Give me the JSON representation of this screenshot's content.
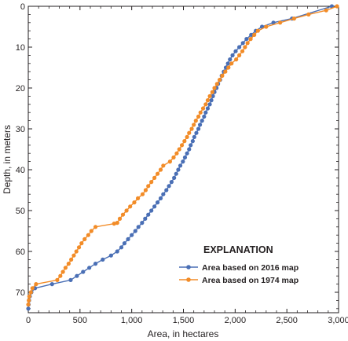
{
  "chart_data": {
    "type": "line",
    "xlabel": "Area, in hectares",
    "ylabel": "Depth, in meters",
    "xlim": [
      0,
      3000
    ],
    "ylim": [
      0,
      75
    ],
    "y_inverted": true,
    "x_axis_position": "top-and-bottom",
    "x_ticks": [
      0,
      500,
      1000,
      1500,
      2000,
      2500,
      3000
    ],
    "x_tick_labels": [
      "0",
      "500",
      "1,000",
      "1,500",
      "2,000",
      "2,500",
      "3,000"
    ],
    "y_ticks": [
      0,
      10,
      20,
      30,
      40,
      50,
      60,
      70
    ],
    "y_tick_labels": [
      "0",
      "10",
      "20",
      "30",
      "40",
      "50",
      "60",
      "70"
    ],
    "grid": false,
    "legend": {
      "title": "EXPLANATION",
      "placement": "lower-right"
    },
    "series": [
      {
        "name": "Area based on 2016 map",
        "color": "#4a6fb5",
        "marker": "circle",
        "points": [
          [
            2935,
            0
          ],
          [
            2550,
            3
          ],
          [
            2370,
            4
          ],
          [
            2260,
            5
          ],
          [
            2200,
            6
          ],
          [
            2155,
            7
          ],
          [
            2110,
            8
          ],
          [
            2075,
            9
          ],
          [
            2040,
            10
          ],
          [
            2005,
            11
          ],
          [
            1975,
            12
          ],
          [
            1950,
            13
          ],
          [
            1930,
            14
          ],
          [
            1910,
            15
          ],
          [
            1890,
            16
          ],
          [
            1870,
            17
          ],
          [
            1855,
            18
          ],
          [
            1835,
            19
          ],
          [
            1820,
            20
          ],
          [
            1800,
            21
          ],
          [
            1785,
            22
          ],
          [
            1770,
            23
          ],
          [
            1755,
            24
          ],
          [
            1735,
            25
          ],
          [
            1715,
            26
          ],
          [
            1700,
            27
          ],
          [
            1680,
            28
          ],
          [
            1660,
            29
          ],
          [
            1645,
            30
          ],
          [
            1625,
            31
          ],
          [
            1605,
            32
          ],
          [
            1590,
            33
          ],
          [
            1570,
            34
          ],
          [
            1555,
            35
          ],
          [
            1535,
            36
          ],
          [
            1515,
            37
          ],
          [
            1495,
            38
          ],
          [
            1470,
            39
          ],
          [
            1450,
            40
          ],
          [
            1430,
            41
          ],
          [
            1410,
            42
          ],
          [
            1385,
            43
          ],
          [
            1360,
            44
          ],
          [
            1335,
            45
          ],
          [
            1305,
            46
          ],
          [
            1280,
            47
          ],
          [
            1250,
            48
          ],
          [
            1220,
            49
          ],
          [
            1190,
            50
          ],
          [
            1160,
            51
          ],
          [
            1130,
            52
          ],
          [
            1100,
            53
          ],
          [
            1065,
            54
          ],
          [
            1035,
            55
          ],
          [
            1000,
            56
          ],
          [
            965,
            57
          ],
          [
            930,
            58
          ],
          [
            900,
            59
          ],
          [
            860,
            60
          ],
          [
            800,
            61
          ],
          [
            720,
            62
          ],
          [
            650,
            63
          ],
          [
            590,
            64
          ],
          [
            530,
            65
          ],
          [
            470,
            66
          ],
          [
            410,
            67
          ],
          [
            230,
            68
          ],
          [
            65,
            69
          ],
          [
            30,
            70
          ],
          [
            15,
            71
          ],
          [
            8,
            72
          ],
          [
            3,
            73
          ],
          [
            0,
            74
          ]
        ]
      },
      {
        "name": "Area based on 1974 map",
        "color": "#f28c28",
        "marker": "circle",
        "points": [
          [
            2985,
            0
          ],
          [
            2880,
            1
          ],
          [
            2710,
            2
          ],
          [
            2570,
            3
          ],
          [
            2435,
            4
          ],
          [
            2300,
            5
          ],
          [
            2220,
            6
          ],
          [
            2185,
            7
          ],
          [
            2150,
            8
          ],
          [
            2120,
            9
          ],
          [
            2095,
            10
          ],
          [
            2070,
            11
          ],
          [
            2040,
            12
          ],
          [
            2010,
            13
          ],
          [
            1965,
            14
          ],
          [
            1935,
            15
          ],
          [
            1905,
            16
          ],
          [
            1875,
            17
          ],
          [
            1850,
            18
          ],
          [
            1825,
            19
          ],
          [
            1800,
            20
          ],
          [
            1780,
            21
          ],
          [
            1755,
            22
          ],
          [
            1735,
            23
          ],
          [
            1715,
            24
          ],
          [
            1690,
            25
          ],
          [
            1665,
            26
          ],
          [
            1645,
            27
          ],
          [
            1620,
            28
          ],
          [
            1600,
            29
          ],
          [
            1580,
            30
          ],
          [
            1555,
            31
          ],
          [
            1535,
            32
          ],
          [
            1510,
            33
          ],
          [
            1485,
            34
          ],
          [
            1460,
            35
          ],
          [
            1435,
            36
          ],
          [
            1405,
            37
          ],
          [
            1370,
            38
          ],
          [
            1305,
            39
          ],
          [
            1280,
            40
          ],
          [
            1250,
            41
          ],
          [
            1220,
            42
          ],
          [
            1190,
            43
          ],
          [
            1160,
            44
          ],
          [
            1135,
            45
          ],
          [
            1105,
            46
          ],
          [
            1060,
            47
          ],
          [
            1025,
            48
          ],
          [
            985,
            49
          ],
          [
            950,
            50
          ],
          [
            915,
            51
          ],
          [
            885,
            52
          ],
          [
            860,
            53
          ],
          [
            830,
            53.2
          ],
          [
            650,
            54
          ],
          [
            610,
            55
          ],
          [
            580,
            56
          ],
          [
            545,
            57
          ],
          [
            515,
            58
          ],
          [
            490,
            59
          ],
          [
            465,
            60
          ],
          [
            440,
            61
          ],
          [
            415,
            62
          ],
          [
            390,
            63
          ],
          [
            360,
            64
          ],
          [
            335,
            65
          ],
          [
            310,
            66
          ],
          [
            280,
            67
          ],
          [
            75,
            68
          ],
          [
            40,
            69
          ],
          [
            25,
            70
          ],
          [
            10,
            71
          ],
          [
            5,
            72
          ],
          [
            0,
            73
          ]
        ]
      }
    ]
  }
}
